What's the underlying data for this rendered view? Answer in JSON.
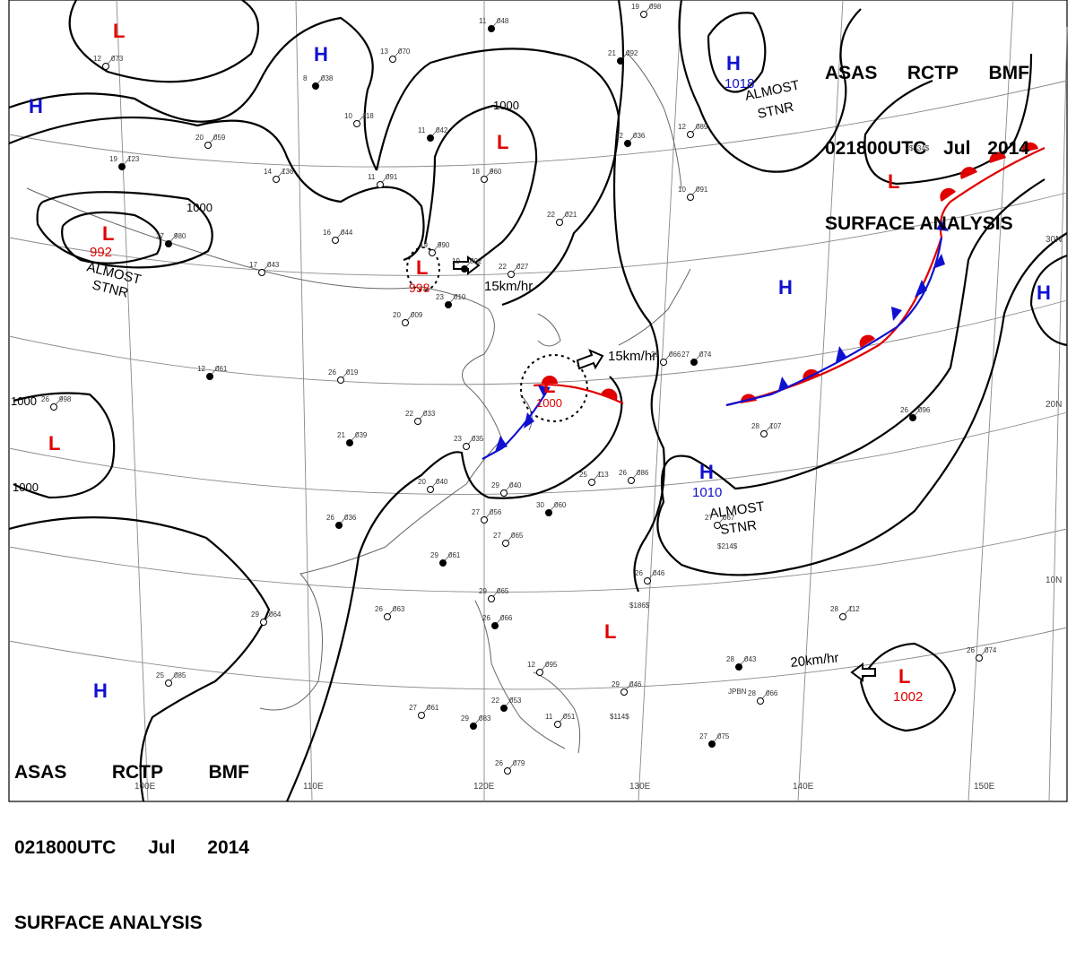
{
  "header_top": {
    "line1": [
      "ASAS",
      "RCTP",
      "BMF"
    ],
    "line2": [
      "021800UTC",
      "Jul",
      "2014"
    ],
    "line3": "SURFACE ANALYSIS"
  },
  "header_bottom": {
    "line1": [
      "ASAS",
      "RCTP",
      "BMF"
    ],
    "line2": [
      "021800UTC",
      "Jul",
      "2014"
    ],
    "line3": "SURFACE ANALYSIS"
  },
  "colors": {
    "high": "#1010d0",
    "low": "#e00000",
    "warm_front": "#e00000",
    "cold_front": "#1010d0",
    "isobar": "#000000",
    "grid": "#8a8a8a"
  },
  "pressure_centers": [
    {
      "type": "L",
      "letter": "L",
      "value": ""
    },
    {
      "type": "H",
      "letter": "H",
      "value": ""
    },
    {
      "type": "H",
      "letter": "H",
      "value": ""
    },
    {
      "type": "L",
      "letter": "L",
      "value": "992"
    },
    {
      "type": "L",
      "letter": "L",
      "value": ""
    },
    {
      "type": "L",
      "letter": "L",
      "value": "998"
    },
    {
      "type": "H",
      "letter": "H",
      "value": "1018"
    },
    {
      "type": "L",
      "letter": "L",
      "value": ""
    },
    {
      "type": "H",
      "letter": "H",
      "value": ""
    },
    {
      "type": "H",
      "letter": "H",
      "value": ""
    },
    {
      "type": "L",
      "letter": "L",
      "value": ""
    },
    {
      "type": "L",
      "letter": "L",
      "value": "1000"
    },
    {
      "type": "H",
      "letter": "H",
      "value": "1010"
    },
    {
      "type": "L",
      "letter": "L",
      "value": ""
    },
    {
      "type": "L",
      "letter": "L",
      "value": "1002"
    },
    {
      "type": "H",
      "letter": "H",
      "value": ""
    }
  ],
  "isobar_labels": [
    "1000",
    "1000",
    "1000",
    "1000",
    "1000"
  ],
  "annotations": [
    {
      "text": "ALMOST"
    },
    {
      "text": "STNR"
    },
    {
      "text": "ALMOST"
    },
    {
      "text": "STNR"
    },
    {
      "text": "ALMOST"
    },
    {
      "text": "STNR"
    }
  ],
  "motion_vectors": [
    "15km/hr",
    "15km/hr",
    "20km/hr"
  ],
  "latitude_labels": [
    "30N",
    "20N",
    "10N"
  ],
  "longitude_labels": [
    "100E",
    "110E",
    "120E",
    "130E",
    "140E",
    "150E"
  ],
  "station_plots": [
    {
      "t": "11",
      "p": "048"
    },
    {
      "t": "13",
      "p": "070"
    },
    {
      "t": "12",
      "p": "073"
    },
    {
      "t": "8",
      "p": "038"
    },
    {
      "t": "10",
      "p": "118"
    },
    {
      "t": "20",
      "p": "059"
    },
    {
      "t": "19",
      "p": "123"
    },
    {
      "t": "14",
      "p": "136"
    },
    {
      "t": "11",
      "p": "091"
    },
    {
      "t": "11",
      "p": "042"
    },
    {
      "t": "18",
      "p": "960"
    },
    {
      "t": "16",
      "p": "044"
    },
    {
      "t": "27",
      "p": "980"
    },
    {
      "t": "17",
      "p": "043"
    },
    {
      "t": "19",
      "p": "990"
    },
    {
      "t": "19",
      "p": "002"
    },
    {
      "t": "22",
      "p": "027"
    },
    {
      "t": "22",
      "p": "021"
    },
    {
      "t": "23",
      "p": "010"
    },
    {
      "t": "20",
      "p": "009"
    },
    {
      "t": "26",
      "p": "019"
    },
    {
      "t": "12",
      "p": "061"
    },
    {
      "t": "12",
      "p": "089"
    },
    {
      "t": "10",
      "p": "091"
    },
    {
      "t": "12",
      "p": "036"
    },
    {
      "t": "26",
      "p": "998"
    },
    {
      "t": "22",
      "p": "033"
    },
    {
      "t": "21",
      "p": "039"
    },
    {
      "t": "23",
      "p": "035"
    },
    {
      "t": "20",
      "p": "040"
    },
    {
      "t": "26",
      "p": "036"
    },
    {
      "t": "29",
      "p": "040"
    },
    {
      "t": "27",
      "p": "056"
    },
    {
      "t": "30",
      "p": "060"
    },
    {
      "t": "27",
      "p": "065"
    },
    {
      "t": "29",
      "p": "064"
    },
    {
      "t": "29",
      "p": "061"
    },
    {
      "t": "26",
      "p": "063"
    },
    {
      "t": "29",
      "p": "065"
    },
    {
      "t": "26",
      "p": "066"
    },
    {
      "t": "26",
      "p": "046"
    },
    {
      "t": "28",
      "p": "112"
    },
    {
      "t": "28",
      "p": "043"
    },
    {
      "t": "29",
      "p": "046"
    },
    {
      "t": "28",
      "p": "066"
    },
    {
      "t": "27",
      "p": "075"
    },
    {
      "t": "26",
      "p": "074"
    },
    {
      "t": "27",
      "p": "061"
    },
    {
      "t": "29",
      "p": "083"
    },
    {
      "t": "26",
      "p": "079"
    },
    {
      "t": "25",
      "p": "085"
    },
    {
      "t": "26",
      "p": "096"
    },
    {
      "t": "28",
      "p": "107"
    },
    {
      "t": "26",
      "p": "086"
    },
    {
      "t": "27",
      "p": "074"
    },
    {
      "t": "29",
      "p": "066"
    },
    {
      "t": "19",
      "p": "098"
    },
    {
      "t": "21",
      "p": "092"
    },
    {
      "t": "12",
      "p": "095"
    },
    {
      "t": "11",
      "p": "051"
    },
    {
      "t": "22",
      "p": "053"
    },
    {
      "t": "27",
      "p": "067"
    },
    {
      "t": "25",
      "p": "113"
    },
    {
      "t": "28",
      "p": "047"
    }
  ],
  "station_extras": [
    "$434$",
    "$214$",
    "$186$",
    "$114$",
    "JPBN"
  ]
}
